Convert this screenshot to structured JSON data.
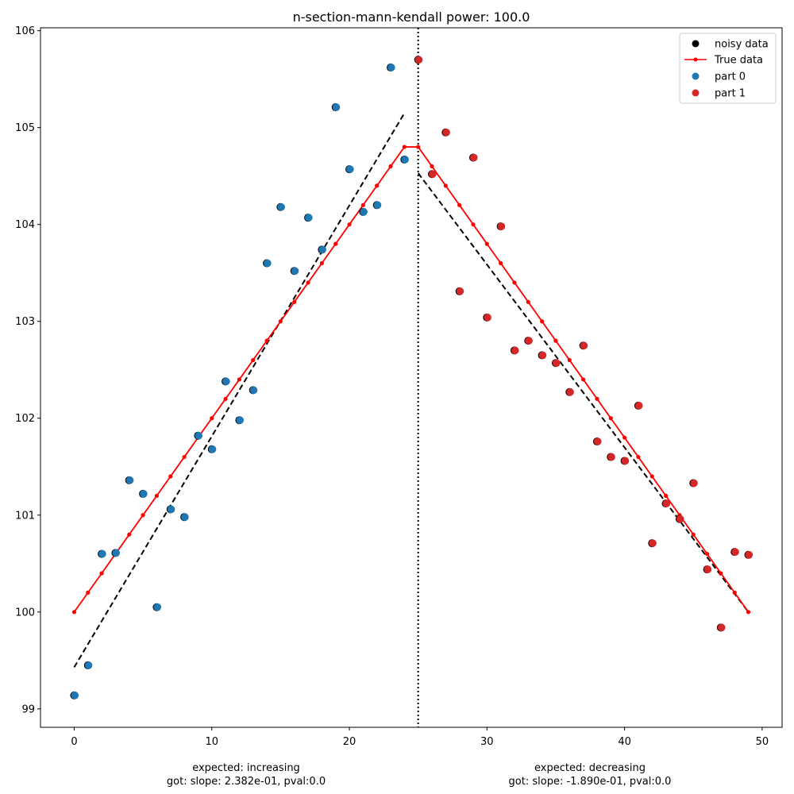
{
  "chart_data": {
    "type": "scatter",
    "title": "n-section-mann-kendall power: 100.0",
    "xlabel": "",
    "ylabel": "",
    "xlim": [
      -2.45,
      51.45
    ],
    "ylim": [
      98.81,
      106.03
    ],
    "xticks": [
      0,
      10,
      20,
      30,
      40,
      50
    ],
    "yticks": [
      99,
      100,
      101,
      102,
      103,
      104,
      105,
      106
    ],
    "grid": false,
    "legend_position": "top-right",
    "legend": [
      {
        "label": "noisy data",
        "kind": "point",
        "color": "#000000"
      },
      {
        "label": "True data",
        "kind": "line-marker",
        "color": "#ff0000"
      },
      {
        "label": "part 0",
        "kind": "point",
        "color": "#1f77b4"
      },
      {
        "label": "part 1",
        "kind": "point",
        "color": "#d62728"
      }
    ],
    "true_data": {
      "name": "True data",
      "color": "#ff0000",
      "x": [
        0,
        1,
        2,
        3,
        4,
        5,
        6,
        7,
        8,
        9,
        10,
        11,
        12,
        13,
        14,
        15,
        16,
        17,
        18,
        19,
        20,
        21,
        22,
        23,
        24,
        25,
        26,
        27,
        28,
        29,
        30,
        31,
        32,
        33,
        34,
        35,
        36,
        37,
        38,
        39,
        40,
        41,
        42,
        43,
        44,
        45,
        46,
        47,
        48,
        49
      ],
      "y": [
        100.0,
        100.2,
        100.4,
        100.6,
        100.8,
        101.0,
        101.2,
        101.4,
        101.6,
        101.8,
        102.0,
        102.2,
        102.4,
        102.6,
        102.8,
        103.0,
        103.2,
        103.4,
        103.6,
        103.8,
        104.0,
        104.2,
        104.4,
        104.6,
        104.8,
        104.8,
        104.6,
        104.4,
        104.2,
        104.0,
        103.8,
        103.6,
        103.4,
        103.2,
        103.0,
        102.8,
        102.6,
        102.4,
        102.2,
        102.0,
        101.8,
        101.6,
        101.4,
        101.2,
        101.0,
        100.8,
        100.6,
        100.4,
        100.2,
        100.0
      ]
    },
    "parts": [
      {
        "name": "part 0",
        "color": "#1f77b4",
        "x": [
          0,
          1,
          2,
          3,
          4,
          5,
          6,
          7,
          8,
          9,
          10,
          11,
          12,
          13,
          14,
          15,
          16,
          17,
          18,
          19,
          20,
          21,
          22,
          23,
          24
        ],
        "y": [
          99.14,
          99.45,
          100.6,
          100.61,
          101.36,
          101.22,
          100.05,
          101.06,
          100.98,
          101.82,
          101.68,
          102.38,
          101.98,
          102.29,
          103.6,
          104.18,
          103.52,
          104.07,
          103.74,
          105.21,
          104.57,
          104.13,
          104.2,
          105.62,
          104.67
        ]
      },
      {
        "name": "part 1",
        "color": "#d62728",
        "x": [
          25,
          26,
          27,
          28,
          29,
          30,
          31,
          32,
          33,
          34,
          35,
          36,
          37,
          38,
          39,
          40,
          41,
          42,
          43,
          44,
          45,
          46,
          47,
          48,
          49
        ],
        "y": [
          105.7,
          104.52,
          104.95,
          103.31,
          104.69,
          103.04,
          103.98,
          102.7,
          102.8,
          102.65,
          102.57,
          102.27,
          102.75,
          101.76,
          101.6,
          101.56,
          102.13,
          100.71,
          101.12,
          100.96,
          101.33,
          100.44,
          99.84,
          100.62,
          100.59
        ]
      }
    ],
    "fit_lines": [
      {
        "x": [
          0,
          24
        ],
        "y": [
          99.43,
          105.15
        ],
        "style": "dashed",
        "color": "#000000"
      },
      {
        "x": [
          25,
          49
        ],
        "y": [
          104.53,
          100.0
        ],
        "style": "dashed",
        "color": "#000000"
      }
    ],
    "breakpoint_x": 25,
    "annotations": [
      {
        "line1": "expected: increasing",
        "line2": "got: slope: 2.382e-01, pval:0.0",
        "x": 12.5
      },
      {
        "line1": "expected: decreasing",
        "line2": "got: slope: -1.890e-01, pval:0.0",
        "x": 37.5
      }
    ]
  }
}
